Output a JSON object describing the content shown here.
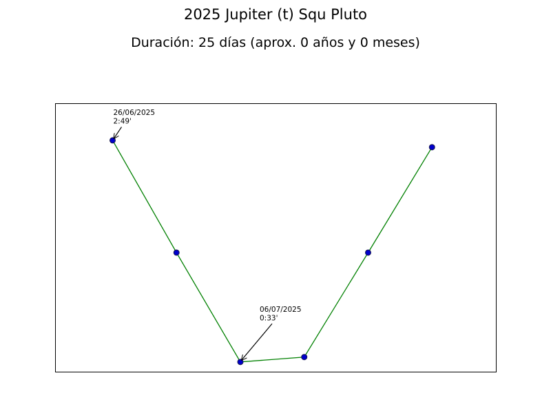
{
  "chart_data": {
    "type": "line",
    "title": "2025 Jupiter (t) Squ Pluto",
    "subtitle": "Duración: 25 días (aprox. 0 años y 0 meses)",
    "xlabel": "",
    "ylabel": "",
    "x": [
      "2025-06-26",
      "2025-07-01",
      "2025-07-06",
      "2025-07-11",
      "2025-07-16",
      "2025-07-21"
    ],
    "series": [
      {
        "values": [
          2.82,
          1.67,
          0.55,
          0.6,
          1.67,
          2.75
        ]
      }
    ],
    "xlim": [
      "2025-06-21.5",
      "2025-07-26"
    ],
    "ylim": [
      3.2,
      0.45
    ],
    "axes_visible": false,
    "grid": false,
    "line_color": "#008000",
    "marker_fill": "#0000cc",
    "marker_edge": "#1a1a4d",
    "annotations": [
      {
        "x": "2025-06-26",
        "y": 2.82,
        "date": "26/06/2025",
        "orb": "2:49'"
      },
      {
        "x": "2025-07-06",
        "y": 0.55,
        "date": "06/07/2025",
        "orb": "0:33'"
      }
    ]
  }
}
